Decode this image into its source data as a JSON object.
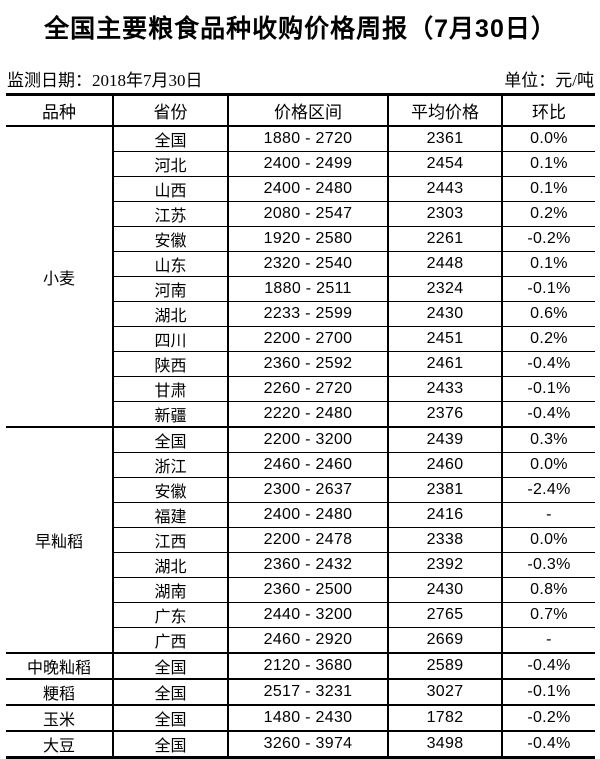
{
  "title": "全国主要粮食品种收购价格周报（7月30日）",
  "meta": {
    "monitor_date": "监测日期：2018年7月30日",
    "unit": "单位：元/吨"
  },
  "table": {
    "columns": [
      "品种",
      "省份",
      "价格区间",
      "平均价格",
      "环比"
    ],
    "groups": [
      {
        "variety": "小麦",
        "rows": [
          {
            "province": "全国",
            "range": "1880 - 2720",
            "avg": "2361",
            "change": "0.0%"
          },
          {
            "province": "河北",
            "range": "2400 - 2499",
            "avg": "2454",
            "change": "0.1%"
          },
          {
            "province": "山西",
            "range": "2400 - 2480",
            "avg": "2443",
            "change": "0.1%"
          },
          {
            "province": "江苏",
            "range": "2080 - 2547",
            "avg": "2303",
            "change": "0.2%"
          },
          {
            "province": "安徽",
            "range": "1920 - 2580",
            "avg": "2261",
            "change": "-0.2%"
          },
          {
            "province": "山东",
            "range": "2320 - 2540",
            "avg": "2448",
            "change": "0.1%"
          },
          {
            "province": "河南",
            "range": "1880 - 2511",
            "avg": "2324",
            "change": "-0.1%"
          },
          {
            "province": "湖北",
            "range": "2233 - 2599",
            "avg": "2430",
            "change": "0.6%"
          },
          {
            "province": "四川",
            "range": "2200 - 2700",
            "avg": "2451",
            "change": "0.2%"
          },
          {
            "province": "陕西",
            "range": "2360 - 2592",
            "avg": "2461",
            "change": "-0.4%"
          },
          {
            "province": "甘肃",
            "range": "2260 - 2720",
            "avg": "2433",
            "change": "-0.1%"
          },
          {
            "province": "新疆",
            "range": "2220 - 2480",
            "avg": "2376",
            "change": "-0.4%"
          }
        ]
      },
      {
        "variety": "早籼稻",
        "rows": [
          {
            "province": "全国",
            "range": "2200 - 3200",
            "avg": "2439",
            "change": "0.3%"
          },
          {
            "province": "浙江",
            "range": "2460 - 2460",
            "avg": "2460",
            "change": "0.0%"
          },
          {
            "province": "安徽",
            "range": "2300 - 2637",
            "avg": "2381",
            "change": "-2.4%"
          },
          {
            "province": "福建",
            "range": "2400 - 2480",
            "avg": "2416",
            "change": "-"
          },
          {
            "province": "江西",
            "range": "2200 - 2478",
            "avg": "2338",
            "change": "0.0%"
          },
          {
            "province": "湖北",
            "range": "2360 - 2432",
            "avg": "2392",
            "change": "-0.3%"
          },
          {
            "province": "湖南",
            "range": "2360 - 2500",
            "avg": "2430",
            "change": "0.8%"
          },
          {
            "province": "广东",
            "range": "2440 - 3200",
            "avg": "2765",
            "change": "0.7%"
          },
          {
            "province": "广西",
            "range": "2460 - 2920",
            "avg": "2669",
            "change": "-"
          }
        ]
      },
      {
        "variety": "中晚籼稻",
        "rows": [
          {
            "province": "全国",
            "range": "2120 - 3680",
            "avg": "2589",
            "change": "-0.4%"
          }
        ]
      },
      {
        "variety": "粳稻",
        "rows": [
          {
            "province": "全国",
            "range": "2517 - 3231",
            "avg": "3027",
            "change": "-0.1%"
          }
        ]
      },
      {
        "variety": "玉米",
        "rows": [
          {
            "province": "全国",
            "range": "1480 - 2430",
            "avg": "1782",
            "change": "-0.2%"
          }
        ]
      },
      {
        "variety": "大豆",
        "rows": [
          {
            "province": "全国",
            "range": "3260 - 3974",
            "avg": "3498",
            "change": "-0.4%"
          }
        ]
      }
    ]
  }
}
